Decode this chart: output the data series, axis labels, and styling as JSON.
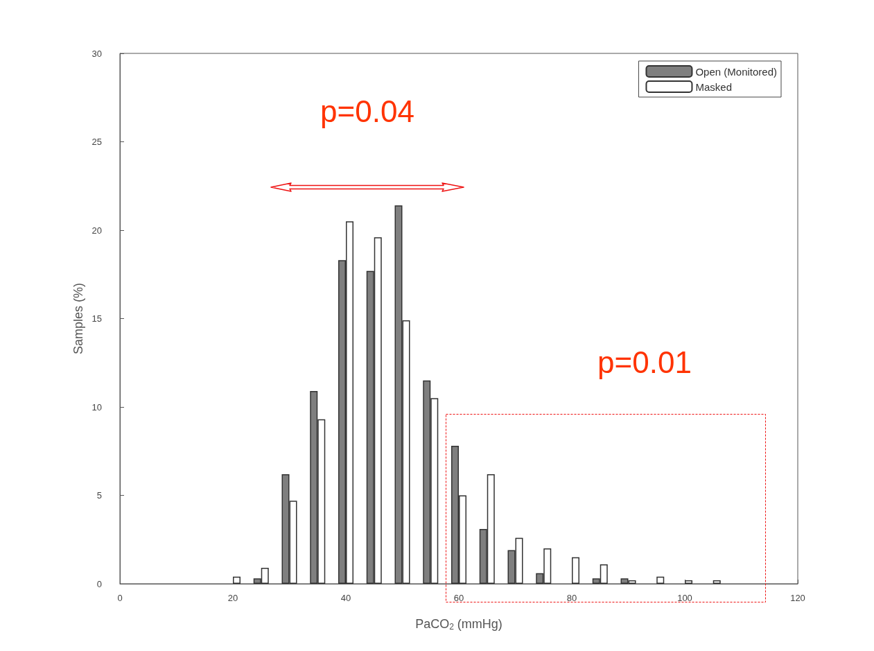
{
  "chart_data": {
    "type": "bar",
    "xlabel": "PaCO$_{2}$ (mmHg)",
    "ylabel": "Samples (%)",
    "x": [
      20,
      25,
      30,
      35,
      40,
      45,
      50,
      55,
      60,
      65,
      70,
      75,
      80,
      85,
      90,
      95,
      100,
      105
    ],
    "series": [
      {
        "name": "Open (Monitored)",
        "color": "#7f7f7f",
        "values": [
          null,
          0.3,
          6.2,
          10.9,
          18.3,
          17.7,
          21.4,
          11.5,
          7.8,
          3.1,
          1.9,
          0.6,
          null,
          0.3,
          0.3,
          null,
          null,
          null
        ]
      },
      {
        "name": "Masked",
        "color": "#ffffff",
        "values": [
          0.4,
          0.9,
          4.7,
          9.3,
          20.5,
          19.6,
          14.9,
          10.5,
          5.0,
          6.2,
          2.6,
          2.0,
          1.5,
          1.1,
          0.2,
          0.4,
          0.2,
          0.2
        ]
      }
    ],
    "xlim": [
      0,
      120
    ],
    "xticks": [
      0,
      20,
      40,
      60,
      80,
      100,
      120
    ],
    "ylim": [
      0,
      30
    ],
    "yticks": [
      0,
      5,
      10,
      15,
      20,
      25,
      30
    ],
    "grid": false,
    "legend": "top right",
    "annotations": [
      "p=0.04",
      "p=0.01"
    ]
  }
}
